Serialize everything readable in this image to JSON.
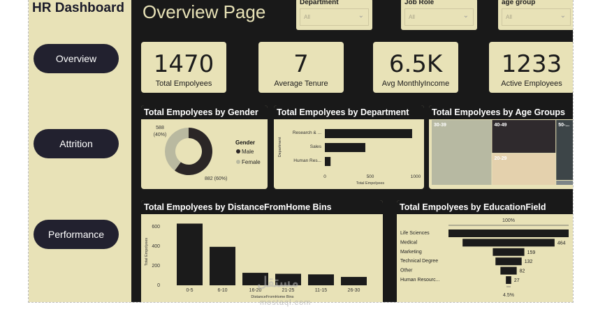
{
  "sidebar": {
    "title": "HR Dashboard",
    "nav": [
      "Overview",
      "Attrition",
      "Performance"
    ]
  },
  "page": {
    "title": "Overview Page"
  },
  "slicers": [
    {
      "label": "Department",
      "value": "All"
    },
    {
      "label": "Job Role",
      "value": "All"
    },
    {
      "label": "age group",
      "value": "All"
    }
  ],
  "kpis": [
    {
      "value": "1470",
      "label": "Total Empolyees"
    },
    {
      "value": "7",
      "label": "Average Tenure"
    },
    {
      "value": "6.5K",
      "label": "Avg MonthlyIncome"
    },
    {
      "value": "1233",
      "label": "Active Employees"
    }
  ],
  "colors": {
    "dark": "#191919",
    "panel": "#e8e2b7",
    "bar": "#1b1b1b",
    "female": "#b9b9a0",
    "male": "#2b2626"
  },
  "chart_data": [
    {
      "type": "pie",
      "title": "Total Empolyees by Gender",
      "legend_title": "Gender",
      "legend_position": "right",
      "slices": [
        {
          "name": "Male",
          "value": 882,
          "label": "882 (60%)"
        },
        {
          "name": "Female",
          "value": 588,
          "label": "588 (40%)"
        }
      ]
    },
    {
      "type": "bar",
      "orientation": "horizontal",
      "title": "Total Empolyees by Department",
      "categories": [
        "Research & ...",
        "Sales",
        "Human Res..."
      ],
      "values": [
        961,
        446,
        63
      ],
      "xlabel": "Total Empolyees",
      "ylabel": "Department",
      "xlim": [
        0,
        1000
      ],
      "xticks": [
        "0",
        "500",
        "1000"
      ]
    },
    {
      "type": "heatmap",
      "subtype": "treemap",
      "title": "Total Empolyees by Age Groups",
      "categories": [
        "30-39",
        "40-49",
        "20-29",
        "50-..."
      ],
      "values": [
        622,
        349,
        326,
        173
      ]
    },
    {
      "type": "bar",
      "title": "Total Empolyees by DistanceFromHome Bins",
      "categories": [
        "0-5",
        "6-10",
        "16-20",
        "21-25",
        "11-15",
        "26-30"
      ],
      "values": [
        632,
        394,
        128,
        118,
        112,
        86
      ],
      "xlabel": "DistanceFromHome Bins",
      "ylabel": "Total Empolyees",
      "ylim": [
        0,
        700
      ],
      "yticks": [
        "0",
        "200",
        "400",
        "600"
      ]
    },
    {
      "type": "bar",
      "subtype": "funnel",
      "title": "Total Empolyees by EducationField",
      "categories": [
        "Life Sciences",
        "Medical",
        "Marketing",
        "Technical Degree",
        "Other",
        "Human Resourc..."
      ],
      "values": [
        606,
        464,
        159,
        132,
        82,
        27
      ],
      "data_labels": [
        "",
        "464",
        "159",
        "132",
        "82",
        "27"
      ],
      "top_label": "100%",
      "bottom_label": "4.5%"
    }
  ],
  "watermark": {
    "text": "مستقل",
    "sub": "mostaql.com"
  }
}
